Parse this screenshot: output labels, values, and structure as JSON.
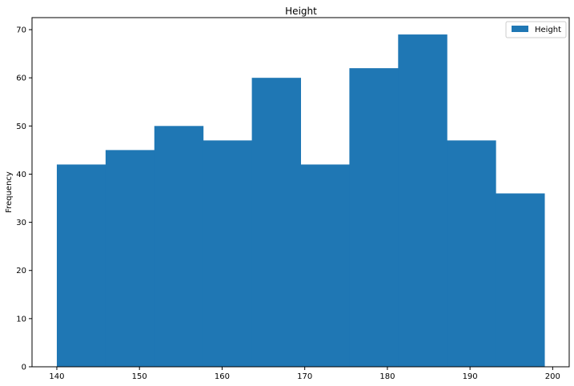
{
  "chart_data": {
    "type": "bar",
    "subtype": "histogram",
    "title": "Height",
    "xlabel": "",
    "ylabel": "Frequency",
    "bin_edges": [
      140,
      145.9,
      151.8,
      157.7,
      163.6,
      169.5,
      175.4,
      181.3,
      187.2,
      193.1,
      199
    ],
    "series": [
      {
        "name": "Height",
        "values": [
          42,
          45,
          50,
          47,
          60,
          42,
          62,
          69,
          47,
          36
        ]
      }
    ],
    "xlim": [
      137,
      202
    ],
    "ylim": [
      0,
      72.5
    ],
    "xticks": [
      140,
      150,
      160,
      170,
      180,
      190,
      200
    ],
    "yticks": [
      0,
      10,
      20,
      30,
      40,
      50,
      60,
      70
    ],
    "grid": false,
    "legend_position": "top-right",
    "colors": {
      "bar": "#1f77b4",
      "axes": "#000000",
      "legend_border": "#cccccc"
    }
  }
}
